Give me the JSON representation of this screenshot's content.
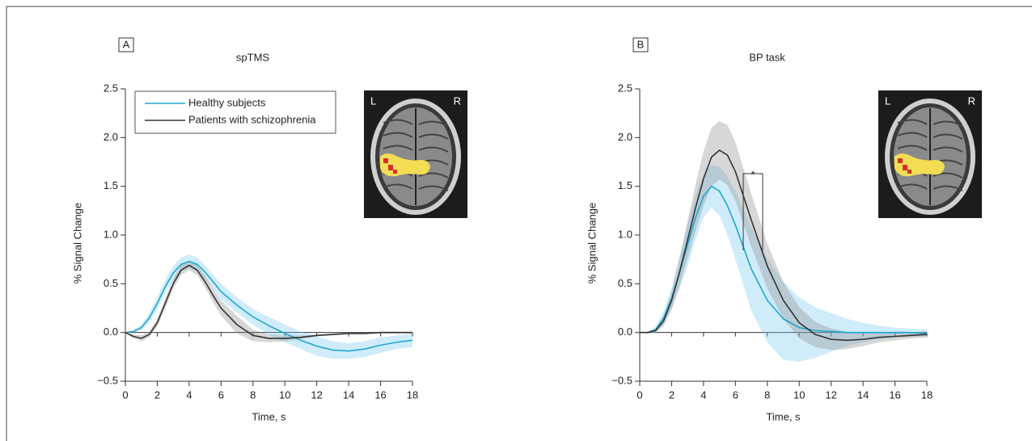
{
  "chart_data": [
    {
      "type": "line",
      "panel": "A",
      "title": "spTMS",
      "xlabel": "Time, s",
      "ylabel": "% Signal Change",
      "x": [
        0,
        0.5,
        1,
        1.5,
        2,
        2.5,
        3,
        3.5,
        4,
        4.5,
        5,
        5.5,
        6,
        7,
        8,
        9,
        10,
        11,
        12,
        13,
        14,
        15,
        16,
        17,
        18
      ],
      "xlim": [
        0,
        18
      ],
      "xticks": [
        0,
        2,
        4,
        6,
        8,
        10,
        12,
        14,
        16,
        18
      ],
      "ylim": [
        -0.5,
        2.5
      ],
      "yticks": [
        {
          "value": -0.5,
          "label": "−0.5"
        },
        {
          "value": 0,
          "label": "0.0"
        },
        0.5,
        {
          "value": 1,
          "label": "1.0"
        },
        1.5,
        {
          "value": 2,
          "label": "2.0"
        },
        2.5
      ],
      "legend": true,
      "image_labels": [
        "L",
        "R"
      ],
      "series": [
        {
          "name": "Healthy subjects",
          "color": "#1ea7cf",
          "band_color": "rgba(120,200,240,0.35)",
          "values": [
            0,
            0.01,
            0.05,
            0.15,
            0.3,
            0.47,
            0.61,
            0.7,
            0.73,
            0.7,
            0.62,
            0.52,
            0.42,
            0.28,
            0.16,
            0.07,
            -0.01,
            -0.08,
            -0.14,
            -0.18,
            -0.19,
            -0.17,
            -0.13,
            -0.1,
            -0.08
          ],
          "band_lower": [
            0,
            0,
            0.02,
            0.1,
            0.24,
            0.4,
            0.54,
            0.63,
            0.66,
            0.63,
            0.55,
            0.45,
            0.34,
            0.2,
            0.08,
            -0.02,
            -0.1,
            -0.17,
            -0.24,
            -0.27,
            -0.27,
            -0.25,
            -0.21,
            -0.17,
            -0.15
          ],
          "band_upper": [
            0,
            0.02,
            0.08,
            0.2,
            0.36,
            0.54,
            0.68,
            0.77,
            0.8,
            0.77,
            0.69,
            0.59,
            0.5,
            0.36,
            0.24,
            0.16,
            0.08,
            0.01,
            -0.04,
            -0.09,
            -0.11,
            -0.09,
            -0.05,
            -0.03,
            -0.01
          ]
        },
        {
          "name": "Patients with schizophrenia",
          "color": "#333333",
          "band_color": "rgba(140,140,140,0.35)",
          "values": [
            0,
            -0.04,
            -0.06,
            -0.02,
            0.1,
            0.3,
            0.5,
            0.64,
            0.69,
            0.64,
            0.52,
            0.38,
            0.25,
            0.08,
            -0.03,
            -0.06,
            -0.06,
            -0.05,
            -0.03,
            -0.02,
            -0.01,
            -0.01,
            0,
            0,
            0
          ],
          "band_lower": [
            0,
            -0.06,
            -0.09,
            -0.05,
            0.06,
            0.25,
            0.45,
            0.59,
            0.64,
            0.59,
            0.46,
            0.31,
            0.17,
            -0.01,
            -0.09,
            -0.1,
            -0.09,
            -0.07,
            -0.04,
            -0.03,
            -0.02,
            -0.02,
            -0.01,
            -0.01,
            -0.01
          ],
          "band_upper": [
            0,
            -0.02,
            -0.03,
            0.01,
            0.14,
            0.35,
            0.55,
            0.69,
            0.74,
            0.69,
            0.58,
            0.45,
            0.33,
            0.17,
            0.03,
            -0.02,
            -0.03,
            -0.03,
            -0.02,
            -0.01,
            0,
            0,
            0.01,
            0.01,
            0.01
          ]
        }
      ]
    },
    {
      "type": "line",
      "panel": "B",
      "title": "BP task",
      "xlabel": "Time, s",
      "ylabel": "% Signal Change",
      "x": [
        0,
        0.5,
        1,
        1.5,
        2,
        2.5,
        3,
        3.5,
        4,
        4.5,
        5,
        5.5,
        6,
        7,
        8,
        9,
        10,
        11,
        12,
        13,
        14,
        15,
        16,
        17,
        18
      ],
      "xlim": [
        0,
        18
      ],
      "xticks": [
        0,
        2,
        4,
        6,
        8,
        10,
        12,
        14,
        16,
        18
      ],
      "ylim": [
        -0.5,
        2.5
      ],
      "yticks": [
        {
          "value": -0.5,
          "label": "−0.5"
        },
        {
          "value": 0,
          "label": "0.0"
        },
        0.5,
        {
          "value": 1,
          "label": "1.0"
        },
        1.5,
        {
          "value": 2,
          "label": "2.0"
        },
        2.5
      ],
      "legend": false,
      "image_labels": [
        "L",
        "R"
      ],
      "annotation": "*",
      "series": [
        {
          "color": "#1ea7cf",
          "band_color": "rgba(120,200,240,0.35)",
          "values": [
            0,
            0,
            0.03,
            0.15,
            0.35,
            0.62,
            0.9,
            1.18,
            1.4,
            1.5,
            1.45,
            1.3,
            1.1,
            0.65,
            0.33,
            0.14,
            0.05,
            0.02,
            0.01,
            0,
            0,
            0,
            0,
            0,
            -0.01
          ],
          "band_lower": [
            0,
            -0.01,
            0,
            0.08,
            0.24,
            0.45,
            0.68,
            0.95,
            1.18,
            1.28,
            1.2,
            1.0,
            0.75,
            0.22,
            -0.1,
            -0.28,
            -0.3,
            -0.26,
            -0.2,
            -0.14,
            -0.1,
            -0.07,
            -0.05,
            -0.04,
            -0.04
          ],
          "band_upper": [
            0,
            0.01,
            0.06,
            0.22,
            0.46,
            0.79,
            1.12,
            1.41,
            1.62,
            1.72,
            1.7,
            1.6,
            1.45,
            1.08,
            0.76,
            0.52,
            0.36,
            0.26,
            0.2,
            0.14,
            0.1,
            0.07,
            0.05,
            0.04,
            0.03
          ]
        },
        {
          "color": "#333333",
          "band_color": "rgba(140,140,140,0.35)",
          "values": [
            0,
            0,
            0.02,
            0.12,
            0.33,
            0.62,
            0.95,
            1.28,
            1.58,
            1.8,
            1.87,
            1.82,
            1.65,
            1.15,
            0.68,
            0.33,
            0.1,
            -0.02,
            -0.07,
            -0.08,
            -0.07,
            -0.05,
            -0.04,
            -0.03,
            -0.02
          ],
          "band_lower": [
            0,
            -0.01,
            0,
            0.07,
            0.24,
            0.48,
            0.76,
            1.04,
            1.3,
            1.5,
            1.57,
            1.51,
            1.35,
            0.88,
            0.45,
            0.14,
            -0.06,
            -0.15,
            -0.18,
            -0.17,
            -0.14,
            -0.1,
            -0.08,
            -0.06,
            -0.05
          ],
          "band_upper": [
            0,
            0.01,
            0.04,
            0.17,
            0.42,
            0.76,
            1.14,
            1.52,
            1.86,
            2.1,
            2.17,
            2.13,
            1.95,
            1.42,
            0.91,
            0.52,
            0.26,
            0.11,
            0.04,
            0.01,
            0,
            0,
            0,
            0,
            0.01
          ]
        }
      ]
    }
  ]
}
